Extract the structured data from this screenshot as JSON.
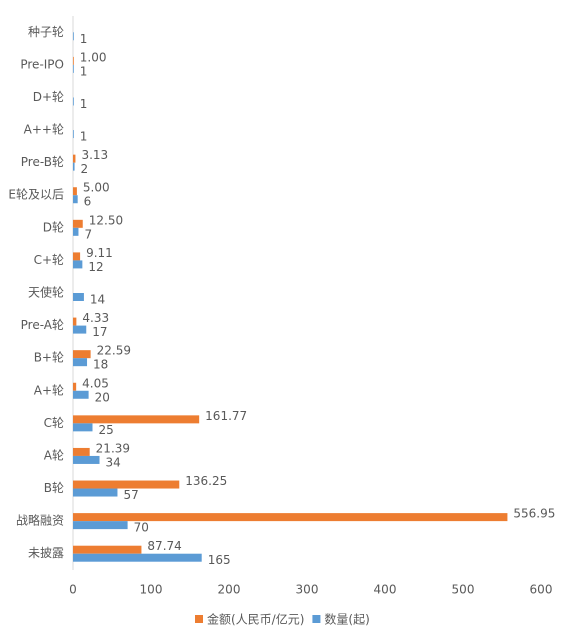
{
  "chart_data": {
    "type": "bar",
    "orientation": "horizontal",
    "categories": [
      "种子轮",
      "Pre-IPO",
      "D+轮",
      "A++轮",
      "Pre-B轮",
      "E轮及以后",
      "D轮",
      "C+轮",
      "天使轮",
      "Pre-A轮",
      "B+轮",
      "A+轮",
      "C轮",
      "A轮",
      "B轮",
      "战略融资",
      "未披露"
    ],
    "series": [
      {
        "name": "金额(人民币/亿元)",
        "color": "#ED7D31",
        "values": [
          null,
          1.0,
          null,
          null,
          3.13,
          5.0,
          12.5,
          9.11,
          null,
          4.33,
          22.59,
          4.05,
          161.77,
          21.39,
          136.25,
          556.95,
          87.74
        ],
        "value_labels": [
          null,
          "1.00",
          null,
          null,
          "3.13",
          "5.00",
          "12.50",
          "9.11",
          null,
          "4.33",
          "22.59",
          "4.05",
          "161.77",
          "21.39",
          "136.25",
          "556.95",
          "87.74"
        ]
      },
      {
        "name": "数量(起)",
        "color": "#5B9BD5",
        "values": [
          1,
          1,
          1,
          1,
          2,
          6,
          7,
          12,
          14,
          17,
          18,
          20,
          25,
          34,
          57,
          70,
          165
        ]
      }
    ],
    "xlim": [
      0,
      600
    ],
    "xticks": [
      0,
      100,
      200,
      300,
      400,
      500,
      600
    ],
    "grid": false,
    "legend": "bottom"
  }
}
